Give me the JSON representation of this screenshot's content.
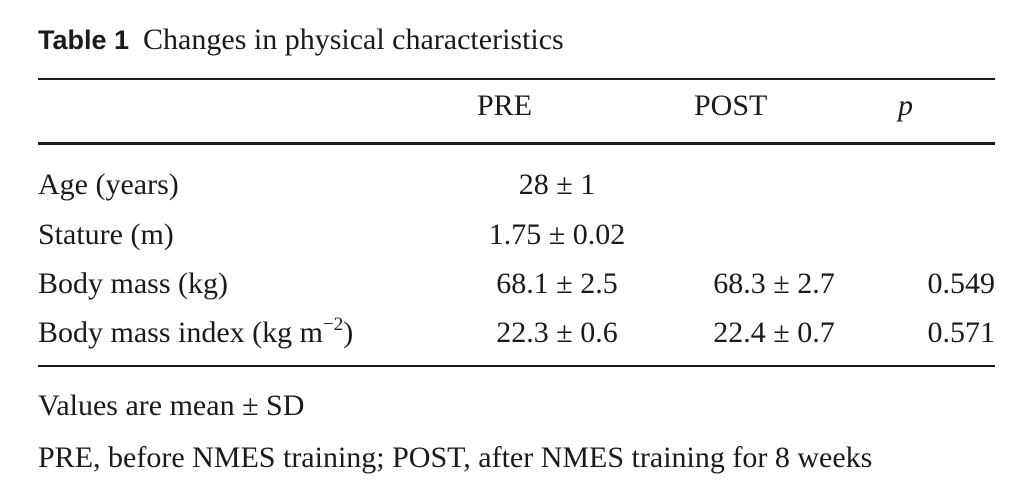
{
  "caption": {
    "label": "Table 1",
    "title": "Changes in physical characteristics"
  },
  "table": {
    "headers": [
      "",
      "PRE",
      "POST",
      "p"
    ],
    "rows": [
      {
        "label": "Age (years)",
        "label_sup": "",
        "label_suffix": "",
        "pre": "28 ± 1",
        "post": "",
        "p": ""
      },
      {
        "label": "Stature (m)",
        "label_sup": "",
        "label_suffix": "",
        "pre": "1.75 ± 0.02",
        "post": "",
        "p": ""
      },
      {
        "label": "Body mass (kg)",
        "label_sup": "",
        "label_suffix": "",
        "pre": "68.1 ± 2.5",
        "post": "68.3 ± 2.7",
        "p": "0.549"
      },
      {
        "label": "Body mass index (kg m",
        "label_sup": "−2",
        "label_suffix": ")",
        "pre": "22.3 ± 0.6",
        "post": "22.4 ± 0.7",
        "p": "0.571"
      }
    ]
  },
  "footnotes": [
    "Values are mean ± SD",
    "PRE, before NMES training; POST, after NMES training for 8 weeks"
  ]
}
